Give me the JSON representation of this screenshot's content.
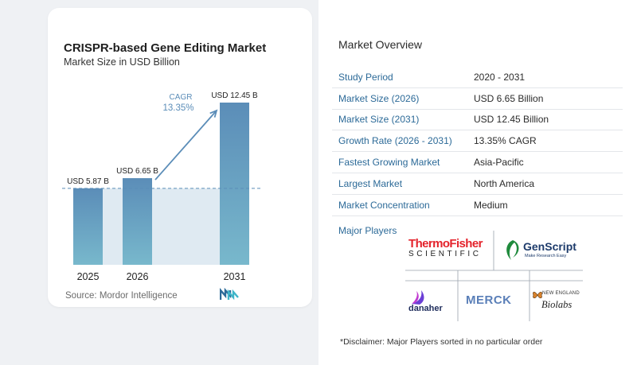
{
  "chart_data": {
    "type": "bar",
    "title": "CRISPR-based Gene Editing Market",
    "subtitle": "Market Size in USD Billion",
    "categories": [
      "2025",
      "2026",
      "2031"
    ],
    "values": [
      5.87,
      6.65,
      12.45
    ],
    "data_labels": [
      "USD 5.87 B",
      "USD 6.65 B",
      "USD 12.45 B"
    ],
    "annotation": {
      "label": "CAGR",
      "value": "13.35%"
    },
    "ylim": [
      0,
      12.45
    ],
    "colors": {
      "bar_top": "#5b8db8",
      "bar_bottom": "#78b8cc",
      "baseline_dash": "#5b8db8",
      "shade": "#dfeaf2",
      "arrow": "#5b8db8"
    },
    "source": "Source:  Mordor Intelligence"
  },
  "overview": {
    "title": "Market Overview",
    "rows": [
      {
        "key": "Study Period",
        "value": "2020 - 2031"
      },
      {
        "key": "Market Size (2026)",
        "value": "USD 6.65 Billion"
      },
      {
        "key": "Market Size (2031)",
        "value": "USD 12.45 Billion"
      },
      {
        "key": "Growth Rate (2026 - 2031)",
        "value": "13.35% CAGR"
      },
      {
        "key": "Fastest Growing Market",
        "value": "Asia-Pacific"
      },
      {
        "key": "Largest Market",
        "value": "North America"
      },
      {
        "key": "Market Concentration",
        "value": "Medium"
      }
    ],
    "players_label": "Major Players",
    "players": {
      "thermo_1": "ThermoFisher",
      "thermo_2": "SCIENTIFIC",
      "genscript": "GenScript",
      "genscript_tag": "Make Research Easy",
      "danaher": "danaher",
      "merck": "MERCK",
      "neb_1": "NEW ENGLAND",
      "neb_2": "Biolabs"
    },
    "disclaimer": "*Disclaimer: Major Players sorted in no particular order"
  }
}
